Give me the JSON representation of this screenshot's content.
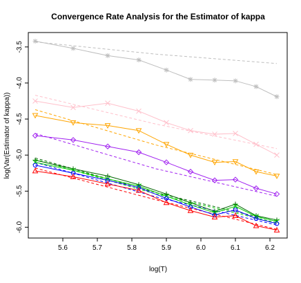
{
  "chart_data": {
    "type": "line",
    "title": "Convergence Rate Analysis for the Estimator of kappa",
    "xlabel": "log(T)",
    "ylabel": "log(Var(Estimator of kappa))",
    "xlim": [
      5.5,
      6.25
    ],
    "ylim": [
      -6.15,
      -3.3
    ],
    "x_ticks": [
      "5.6",
      "5.7",
      "5.8",
      "5.9",
      "6.0",
      "6.1",
      "6.2"
    ],
    "y_ticks": [
      "-3.5",
      "-4.0",
      "-4.5",
      "-5.0",
      "-5.5",
      "-6.0"
    ],
    "x": [
      5.52,
      5.63,
      5.73,
      5.82,
      5.9,
      5.97,
      6.04,
      6.1,
      6.16,
      6.22
    ],
    "grid": false,
    "series": [
      {
        "color": "#bebebe",
        "marker": "asterisk",
        "values": [
          -3.42,
          -3.52,
          -3.62,
          -3.68,
          -3.82,
          -3.95,
          -3.96,
          -3.97,
          -4.05,
          -4.19
        ],
        "fit": [
          -3.43,
          -3.6,
          -3.73
        ]
      },
      {
        "color": "#ffc0cb",
        "marker": "x",
        "values": [
          -4.25,
          -4.34,
          -4.28,
          -4.39,
          -4.55,
          -4.66,
          -4.71,
          -4.7,
          -4.85,
          -5.0
        ],
        "fit": [
          -4.17,
          -4.57,
          -4.91
        ]
      },
      {
        "color": "#ffa500",
        "marker": "triangle-down",
        "values": [
          -4.45,
          -4.55,
          -4.59,
          -4.66,
          -4.85,
          -5.0,
          -5.1,
          -5.09,
          -5.23,
          -5.29
        ],
        "fit": [
          -4.37,
          -4.86,
          -5.27
        ]
      },
      {
        "color": "#a020f0",
        "marker": "diamond",
        "values": [
          -4.73,
          -4.79,
          -4.88,
          -4.96,
          -5.1,
          -5.23,
          -5.35,
          -5.34,
          -5.46,
          -5.54
        ],
        "fit": [
          -4.7,
          -5.19,
          -5.57
        ]
      },
      {
        "color": "#006400",
        "marker": "plus",
        "values": [
          -5.07,
          -5.19,
          -5.29,
          -5.41,
          -5.54,
          -5.66,
          -5.78,
          -5.68,
          -5.84,
          -5.9
        ],
        "fit": [
          -5.04,
          -5.52,
          -5.92
        ]
      },
      {
        "color": "#00cc00",
        "marker": "cross",
        "values": [
          -5.1,
          -5.21,
          -5.33,
          -5.43,
          -5.57,
          -5.69,
          -5.8,
          -5.71,
          -5.85,
          -5.92
        ],
        "fit": [
          -5.06,
          -5.54,
          -5.94
        ]
      },
      {
        "color": "#0000ff",
        "marker": "circle",
        "values": [
          -5.14,
          -5.25,
          -5.35,
          -5.45,
          -5.6,
          -5.72,
          -5.83,
          -5.76,
          -5.88,
          -5.95
        ],
        "fit": [
          -5.1,
          -5.58,
          -5.97
        ]
      },
      {
        "color": "#ff0000",
        "marker": "triangle-up",
        "values": [
          -5.22,
          -5.3,
          -5.4,
          -5.49,
          -5.66,
          -5.77,
          -5.86,
          -5.84,
          -5.98,
          -6.04
        ],
        "fit": [
          -5.18,
          -5.62,
          -6.03
        ]
      }
    ]
  }
}
